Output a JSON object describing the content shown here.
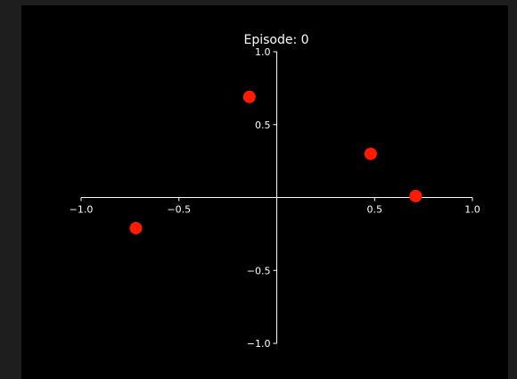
{
  "chart_data": {
    "type": "scatter",
    "title": "Episode: 0",
    "xlabel": "",
    "ylabel": "",
    "xlim": [
      -1.0,
      1.0
    ],
    "ylim": [
      -1.0,
      1.0
    ],
    "grid": false,
    "spines": "centered",
    "x_ticks": [
      -1.0,
      -0.5,
      0.5,
      1.0
    ],
    "x_tick_labels": [
      "−1.0",
      "−0.5",
      "0.5",
      "1.0"
    ],
    "y_ticks": [
      1.0,
      0.5,
      -0.5,
      -1.0
    ],
    "y_tick_labels": [
      "1.0",
      "0.5",
      "−0.5",
      "−1.0"
    ],
    "points": [
      {
        "x": -0.72,
        "y": -0.21
      },
      {
        "x": -0.14,
        "y": 0.69
      },
      {
        "x": 0.48,
        "y": 0.3
      },
      {
        "x": 0.71,
        "y": 0.01
      }
    ],
    "point_color": "#ff1a00",
    "axis_color": "#ffffff",
    "background": "#000000"
  }
}
